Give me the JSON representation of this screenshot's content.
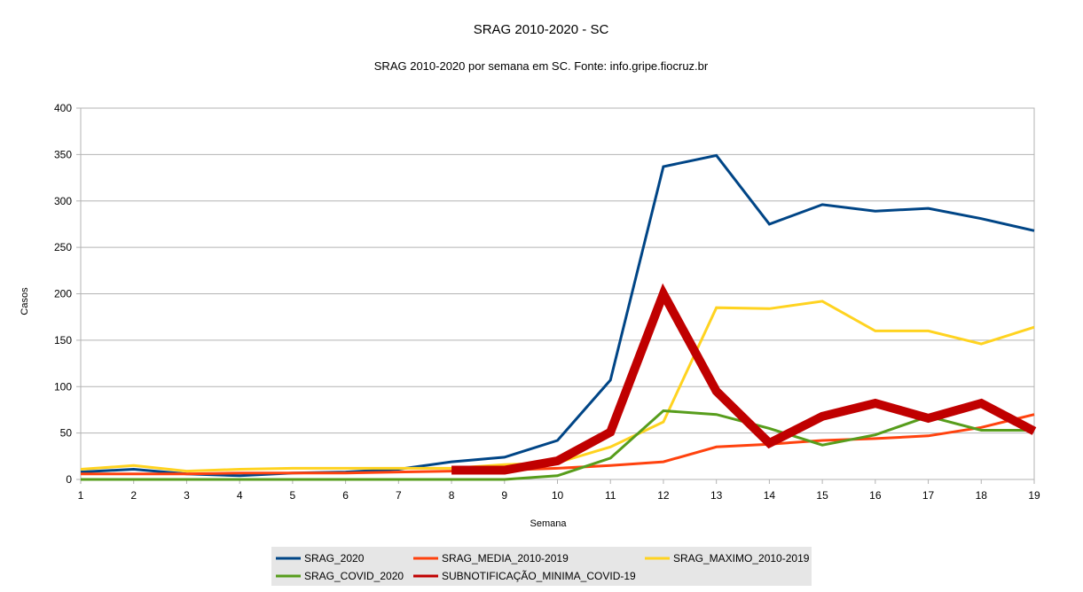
{
  "chart_data": {
    "type": "line",
    "title": "SRAG 2010-2020 - SC",
    "subtitle": "SRAG 2010-2020 por semana em SC. Fonte: info.gripe.fiocruz.br",
    "xlabel": "Semana",
    "ylabel": "Casos",
    "x": [
      1,
      2,
      3,
      4,
      5,
      6,
      7,
      8,
      9,
      10,
      11,
      12,
      13,
      14,
      15,
      16,
      17,
      18,
      19
    ],
    "xlim": [
      1,
      19
    ],
    "ylim": [
      0,
      400
    ],
    "yticks": [
      0,
      50,
      100,
      150,
      200,
      250,
      300,
      350,
      400
    ],
    "grid": true,
    "legend_position": "bottom",
    "series": [
      {
        "name": "SRAG_2020",
        "color": "#004586",
        "values": [
          8,
          11,
          6,
          4,
          7,
          8,
          11,
          19,
          24,
          42,
          107,
          337,
          349,
          275,
          296,
          289,
          292,
          281,
          268
        ]
      },
      {
        "name": "SRAG_MEDIA_2010-2019",
        "color": "#ff420e",
        "values": [
          6,
          6,
          6,
          7,
          7,
          7,
          8,
          9,
          10,
          12,
          15,
          19,
          35,
          38,
          42,
          44,
          47,
          56,
          70
        ]
      },
      {
        "name": "SRAG_MAXIMO_2010-2019",
        "color": "#ffd320",
        "values": [
          11,
          15,
          9,
          11,
          12,
          12,
          12,
          12,
          16,
          18,
          35,
          62,
          185,
          184,
          192,
          160,
          160,
          146,
          164
        ]
      },
      {
        "name": "SRAG_COVID_2020",
        "color": "#579d1c",
        "values": [
          0,
          0,
          0,
          0,
          0,
          0,
          0,
          0,
          0,
          4,
          23,
          74,
          70,
          55,
          37,
          48,
          68,
          53,
          53
        ]
      },
      {
        "name": "SUBNOTIFICAÇÃO_MINIMA_COVID-19",
        "color": "#c00000",
        "thick": true,
        "values": [
          null,
          null,
          null,
          null,
          null,
          null,
          null,
          10,
          10,
          20,
          51,
          200,
          95,
          39,
          68,
          82,
          66,
          82,
          52
        ]
      }
    ]
  }
}
